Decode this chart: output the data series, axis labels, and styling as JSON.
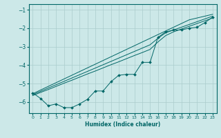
{
  "xlabel": "Humidex (Indice chaleur)",
  "bg_color": "#cce8e8",
  "grid_color": "#aacccc",
  "line_color": "#006666",
  "xlim": [
    -0.5,
    23.5
  ],
  "ylim": [
    -6.6,
    -0.7
  ],
  "xticks": [
    0,
    1,
    2,
    3,
    4,
    5,
    6,
    7,
    8,
    9,
    10,
    11,
    12,
    13,
    14,
    15,
    16,
    17,
    18,
    19,
    20,
    21,
    22,
    23
  ],
  "yticks": [
    -1,
    -2,
    -3,
    -4,
    -5,
    -6
  ],
  "x": [
    0,
    1,
    2,
    3,
    4,
    5,
    6,
    7,
    8,
    9,
    10,
    11,
    12,
    13,
    14,
    15,
    16,
    17,
    18,
    19,
    20,
    21,
    22,
    23
  ],
  "y_straight1": [
    -5.55,
    -5.35,
    -5.15,
    -4.95,
    -4.75,
    -4.55,
    -4.35,
    -4.15,
    -3.95,
    -3.75,
    -3.55,
    -3.35,
    -3.15,
    -2.95,
    -2.75,
    -2.55,
    -2.35,
    -2.15,
    -1.95,
    -1.75,
    -1.55,
    -1.45,
    -1.35,
    -1.25
  ],
  "y_straight2": [
    -5.6,
    -5.42,
    -5.24,
    -5.06,
    -4.88,
    -4.7,
    -4.52,
    -4.34,
    -4.16,
    -3.98,
    -3.8,
    -3.62,
    -3.44,
    -3.26,
    -3.08,
    -2.9,
    -2.55,
    -2.25,
    -2.1,
    -1.95,
    -1.8,
    -1.65,
    -1.5,
    -1.35
  ],
  "y_straight3": [
    -5.65,
    -5.48,
    -5.32,
    -5.15,
    -4.98,
    -4.82,
    -4.65,
    -4.48,
    -4.32,
    -4.15,
    -3.98,
    -3.82,
    -3.65,
    -3.48,
    -3.32,
    -3.15,
    -2.75,
    -2.4,
    -2.2,
    -2.05,
    -1.9,
    -1.75,
    -1.6,
    -1.45
  ],
  "y_jagged": [
    -5.5,
    -5.8,
    -6.2,
    -6.1,
    -6.3,
    -6.3,
    -6.1,
    -5.85,
    -5.4,
    -5.4,
    -4.9,
    -4.55,
    -4.5,
    -4.5,
    -3.85,
    -3.85,
    -2.5,
    -2.2,
    -2.1,
    -2.1,
    -2.0,
    -1.95,
    -1.7,
    -1.4
  ]
}
